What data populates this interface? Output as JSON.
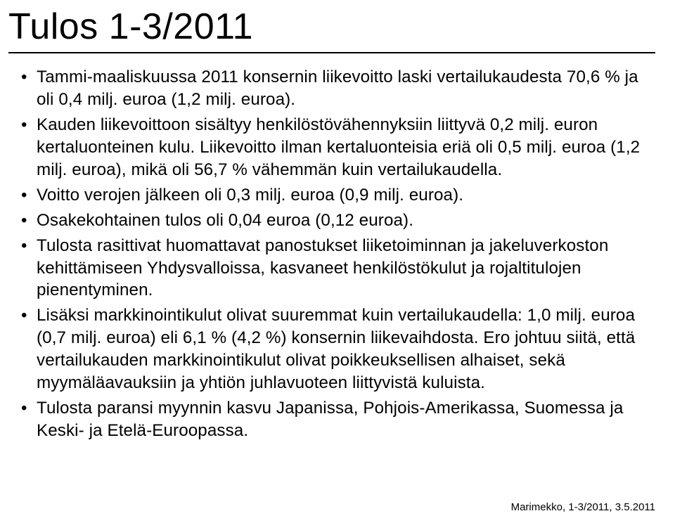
{
  "title": "Tulos 1-3/2011",
  "title_fontsize": 52,
  "rule_color": "#000000",
  "background_color": "#ffffff",
  "text_color": "#000000",
  "body_fontsize": 24.2,
  "body_lineheight": 1.32,
  "bullets": [
    "Tammi-maaliskuussa 2011 konsernin liikevoitto laski vertailukaudesta 70,6 % ja oli 0,4 milj. euroa (1,2 milj. euroa).",
    "Kauden liikevoittoon sisältyy henkilöstövähennyksiin liittyvä 0,2 milj. euron kertaluonteinen kulu. Liikevoitto ilman kertaluonteisia eriä oli 0,5 milj. euroa (1,2 milj. euroa), mikä oli 56,7 % vähemmän kuin vertailukaudella.",
    "Voitto verojen jälkeen oli 0,3 milj. euroa (0,9 milj. euroa).",
    "Osakekohtainen tulos oli 0,04 euroa (0,12 euroa).",
    "Tulosta rasittivat huomattavat panostukset liiketoiminnan ja jakeluverkoston kehittämiseen Yhdysvalloissa, kasvaneet henkilöstökulut ja rojaltitulojen pienentyminen.",
    "Lisäksi markkinointikulut olivat suuremmat kuin vertailukaudella: 1,0 milj. euroa (0,7 milj. euroa) eli 6,1 % (4,2 %) konsernin liikevaihdosta. Ero johtuu siitä, että vertailukauden markkinointikulut olivat poikkeuksellisen alhaiset, sekä myymäläavauksiin ja yhtiön juhlavuoteen liittyvistä kuluista.",
    "Tulosta paransi myynnin kasvu Japanissa, Pohjois-Amerikassa, Suomessa ja Keski- ja Etelä-Euroopassa."
  ],
  "footer": "Marimekko, 1-3/2011, 3.5.2011",
  "footer_fontsize": 15
}
